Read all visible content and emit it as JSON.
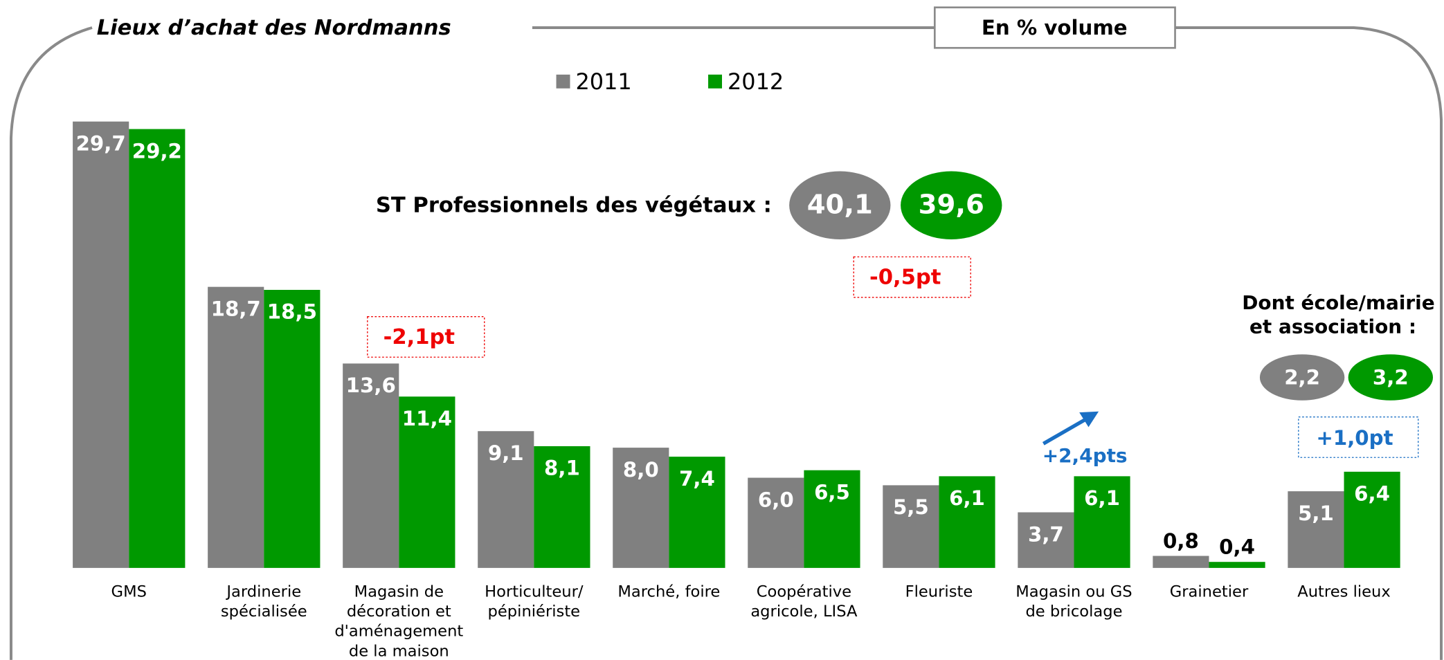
{
  "chart_data": {
    "type": "bar",
    "title": "Lieux d’achat des Nordmanns",
    "subtitle": "En % volume",
    "categories": [
      "GMS",
      "Jardinerie\nspécialisée",
      "Magasin de\ndécoration et\nd'aménagement\nde la maison",
      "Horticulteur/\npépiniériste",
      "Marché, foire",
      "Coopérative\nagricole, LISA",
      "Fleuriste",
      "Magasin ou GS\nde bricolage",
      "Grainetier",
      "Autres lieux"
    ],
    "series": [
      {
        "name": "2011",
        "color": "#808080",
        "values": [
          29.7,
          18.7,
          13.6,
          9.1,
          8.0,
          6.0,
          5.5,
          3.7,
          0.8,
          5.1
        ],
        "value_labels": [
          "29,7",
          "18,7",
          "13,6",
          "9,1",
          "8,0",
          "6,0",
          "5,5",
          "3,7",
          "0,8",
          "5,1"
        ]
      },
      {
        "name": "2012",
        "color": "#009900",
        "values": [
          29.2,
          18.5,
          11.4,
          8.1,
          7.4,
          6.5,
          6.1,
          6.1,
          0.4,
          6.4
        ],
        "value_labels": [
          "29,2",
          "18,5",
          "11,4",
          "8,1",
          "7,4",
          "6,5",
          "6,1",
          "6,1",
          "0,4",
          "6,4"
        ]
      }
    ],
    "annotations": {
      "subtotal_label": "ST Professionnels des végétaux :",
      "subtotal_values": [
        "40,1",
        "39,6"
      ],
      "subtotal_delta": "-0,5pt",
      "deco_delta": "-2,1pt",
      "bricolage_delta": "+2,4pts",
      "other_label": [
        "Dont école/mairie",
        "et association :"
      ],
      "other_values": [
        "2,2",
        "3,2"
      ],
      "other_delta": "+1,0pt"
    }
  }
}
